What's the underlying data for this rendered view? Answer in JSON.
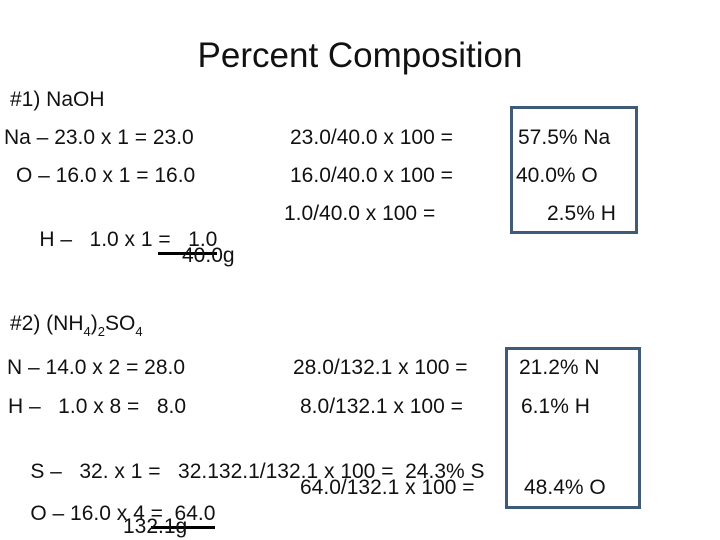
{
  "title": "Percent Composition",
  "colors": {
    "background": "#ffffff",
    "text": "#111111",
    "result_box_border": "#3e5c78"
  },
  "problem1": {
    "header": "#1) NaOH",
    "rows": [
      {
        "left": "Na – 23.0 x 1 = 23.0",
        "middle": "23.0/40.0 x 100 =",
        "result": "57.5% Na"
      },
      {
        "left": "O – 16.0 x 1 = 16.0",
        "middle": "16.0/40.0 x 100 =",
        "result": "40.0% O"
      },
      {
        "left_plain": "H –   1.0 x 1 ",
        "left_underlined": "=   1.0",
        "middle": "1.0/40.0 x 100 =",
        "result": "2.5% H"
      }
    ],
    "total_mass": "40.0g"
  },
  "problem2": {
    "header_segments": [
      {
        "text": "#2) (NH"
      },
      {
        "text": "4",
        "sub": true
      },
      {
        "text": ")"
      },
      {
        "text": "2",
        "sub": true
      },
      {
        "text": "SO"
      },
      {
        "text": "4",
        "sub": true
      }
    ],
    "rows": [
      {
        "left": "N – 14.0 x 2 = 28.0",
        "middle": "28.0/132.1 x 100 =",
        "result": "21.2% N"
      },
      {
        "left": "H –   1.0 x 8 =   8.0",
        "middle": "8.0/132.1 x 100 =",
        "result": "6.1% H"
      }
    ],
    "s_row": {
      "left": "S –   32. x 1 =   32.1",
      "middle": "32.1/132.1 x 100 = ",
      "result": " 24.3% S"
    },
    "o_row": {
      "left_plain": "O – 16.0 x 4 ",
      "left_underlined": "=  64.0",
      "middle": "64.0/132.1 x 100 =",
      "result": "48.4% O"
    },
    "total_mass": "132.1g"
  }
}
